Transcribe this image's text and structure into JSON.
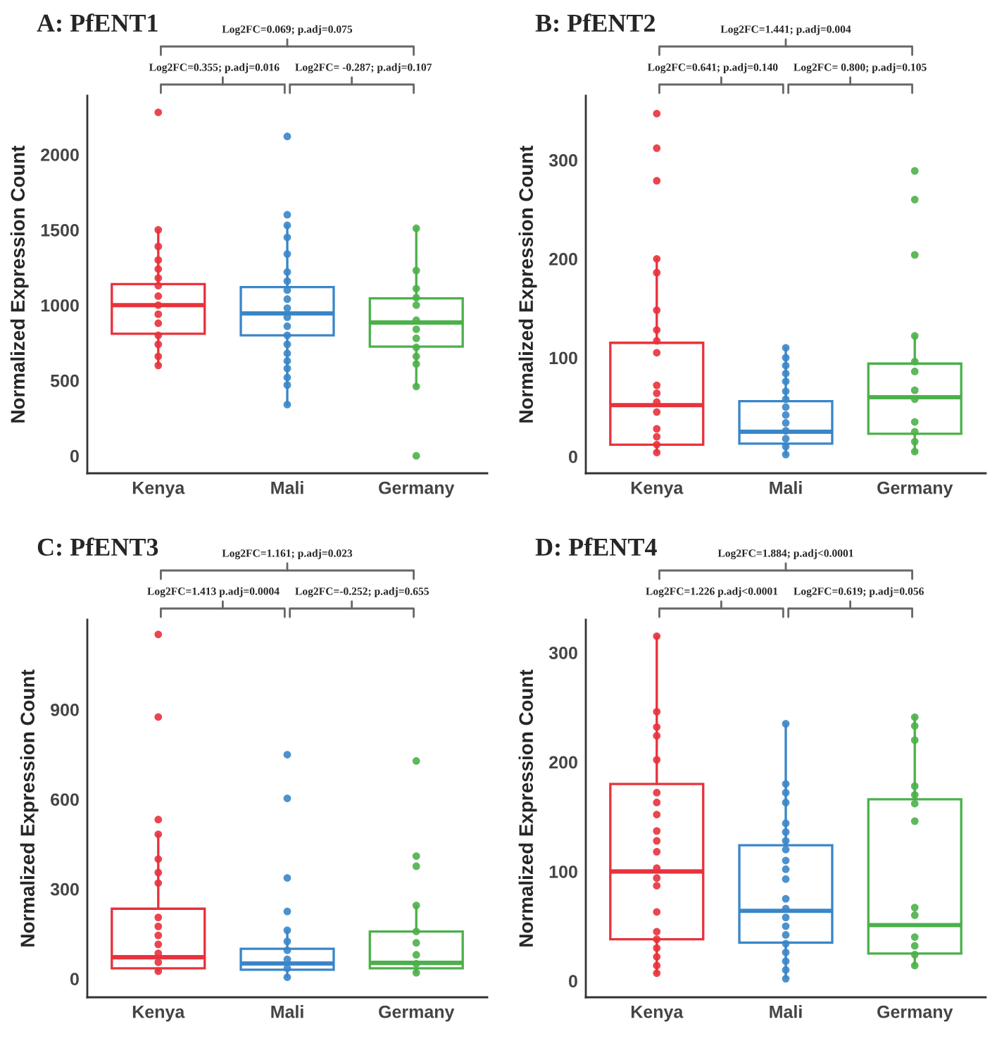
{
  "chart_data": [
    {
      "type": "box",
      "title": "A: PfENT1",
      "ylabel": "Normalized Expression Count",
      "categories": [
        "Kenya",
        "Mali",
        "Germany"
      ],
      "ylim": [
        -116,
        2390
      ],
      "yticks": [
        0,
        500,
        1000,
        1500,
        2000
      ],
      "annotations": [
        "Log2FC=0.069; p.adj=0.075",
        "Log2FC=0.355; p.adj=0.016",
        "Log2FC= -0.287; p.adj=0.107"
      ],
      "boxes": [
        {
          "low": 600,
          "q1": 810,
          "median": 1000,
          "q3": 1140,
          "high": 1500
        },
        {
          "low": 340,
          "q1": 800,
          "median": 945,
          "q3": 1120,
          "high": 1530
        },
        {
          "low": 460,
          "q1": 725,
          "median": 885,
          "q3": 1045,
          "high": 1510
        }
      ],
      "colors": [
        "#e8323c",
        "#3a86c8",
        "#4cb04a"
      ],
      "series": [
        {
          "type": "scatter",
          "color": "#e8323c",
          "x": [
            "Kenya",
            "Kenya",
            "Kenya",
            "Kenya",
            "Kenya",
            "Kenya",
            "Kenya",
            "Kenya",
            "Kenya",
            "Kenya",
            "Kenya",
            "Kenya",
            "Kenya",
            "Kenya",
            "Kenya"
          ],
          "values": [
            2280,
            1500,
            1390,
            1300,
            1240,
            1180,
            1130,
            1060,
            1000,
            940,
            880,
            800,
            740,
            660,
            600
          ]
        },
        {
          "type": "scatter",
          "color": "#3a86c8",
          "x": [
            "Mali",
            "Mali",
            "Mali",
            "Mali",
            "Mali",
            "Mali",
            "Mali",
            "Mali",
            "Mali",
            "Mali",
            "Mali",
            "Mali",
            "Mali",
            "Mali",
            "Mali",
            "Mali",
            "Mali",
            "Mali",
            "Mali",
            "Mali"
          ],
          "values": [
            2120,
            1600,
            1530,
            1450,
            1340,
            1220,
            1160,
            1100,
            1040,
            980,
            920,
            860,
            800,
            740,
            680,
            630,
            580,
            520,
            470,
            340
          ]
        },
        {
          "type": "scatter",
          "color": "#4cb04a",
          "x": [
            "Germany",
            "Germany",
            "Germany",
            "Germany",
            "Germany",
            "Germany",
            "Germany",
            "Germany",
            "Germany",
            "Germany",
            "Germany",
            "Germany",
            "Germany"
          ],
          "values": [
            1510,
            1230,
            1110,
            1050,
            1000,
            900,
            840,
            780,
            720,
            660,
            610,
            460,
            0
          ]
        }
      ]
    },
    {
      "type": "box",
      "title": "B: PfENT2",
      "ylabel": "Normalized Expression Count",
      "categories": [
        "Kenya",
        "Mali",
        "Germany"
      ],
      "ylim": [
        -17,
        365
      ],
      "yticks": [
        0,
        100,
        200,
        300
      ],
      "annotations": [
        "Log2FC=1.441; p.adj=0.004",
        "Log2FC=0.641; p.adj=0.140",
        "Log2FC= 0.800; p.adj=0.105"
      ],
      "boxes": [
        {
          "low": 4,
          "q1": 12,
          "median": 52,
          "q3": 115,
          "high": 200
        },
        {
          "low": 2,
          "q1": 13,
          "median": 25,
          "q3": 56,
          "high": 110
        },
        {
          "low": 5,
          "q1": 23,
          "median": 60,
          "q3": 94,
          "high": 122
        }
      ],
      "colors": [
        "#e8323c",
        "#3a86c8",
        "#4cb04a"
      ],
      "series": [
        {
          "type": "scatter",
          "color": "#e8323c",
          "x": [
            "Kenya",
            "Kenya",
            "Kenya",
            "Kenya",
            "Kenya",
            "Kenya",
            "Kenya",
            "Kenya",
            "Kenya",
            "Kenya",
            "Kenya",
            "Kenya",
            "Kenya",
            "Kenya",
            "Kenya",
            "Kenya",
            "Kenya"
          ],
          "values": [
            347,
            312,
            279,
            200,
            186,
            148,
            128,
            117,
            105,
            72,
            64,
            55,
            45,
            28,
            20,
            12,
            4
          ]
        },
        {
          "type": "scatter",
          "color": "#3a86c8",
          "x": [
            "Mali",
            "Mali",
            "Mali",
            "Mali",
            "Mali",
            "Mali",
            "Mali",
            "Mali",
            "Mali",
            "Mali",
            "Mali",
            "Mali",
            "Mali",
            "Mali"
          ],
          "values": [
            110,
            100,
            92,
            84,
            76,
            66,
            58,
            50,
            42,
            34,
            26,
            18,
            10,
            2
          ]
        },
        {
          "type": "scatter",
          "color": "#4cb04a",
          "x": [
            "Germany",
            "Germany",
            "Germany",
            "Germany",
            "Germany",
            "Germany",
            "Germany",
            "Germany",
            "Germany",
            "Germany",
            "Germany",
            "Germany"
          ],
          "values": [
            289,
            260,
            204,
            122,
            96,
            86,
            67,
            58,
            35,
            25,
            15,
            5
          ]
        }
      ]
    },
    {
      "type": "box",
      "title": "C: PfENT3",
      "ylabel": "Normalized Expression Count",
      "categories": [
        "Kenya",
        "Mali",
        "Germany"
      ],
      "ylim": [
        -62,
        1200
      ],
      "yticks": [
        0,
        300,
        600,
        900
      ],
      "annotations": [
        "Log2FC=1.161; p.adj=0.023",
        "Log2FC=1.413 p.adj=0.0004",
        "Log2FC=-0.252; p.adj=0.655"
      ],
      "boxes": [
        {
          "low": 25,
          "q1": 35,
          "median": 72,
          "q3": 234,
          "high": 483
        },
        {
          "low": 5,
          "q1": 30,
          "median": 51,
          "q3": 100,
          "high": 162
        },
        {
          "low": 20,
          "q1": 35,
          "median": 53,
          "q3": 158,
          "high": 245
        }
      ],
      "colors": [
        "#e8323c",
        "#3a86c8",
        "#4cb04a"
      ],
      "series": [
        {
          "type": "scatter",
          "color": "#e8323c",
          "x": [
            "Kenya",
            "Kenya",
            "Kenya",
            "Kenya",
            "Kenya",
            "Kenya",
            "Kenya",
            "Kenya",
            "Kenya",
            "Kenya",
            "Kenya",
            "Kenya",
            "Kenya",
            "Kenya"
          ],
          "values": [
            1151,
            875,
            532,
            483,
            400,
            355,
            320,
            205,
            175,
            145,
            115,
            85,
            55,
            25
          ]
        },
        {
          "type": "scatter",
          "color": "#3a86c8",
          "x": [
            "Mali",
            "Mali",
            "Mali",
            "Mali",
            "Mali",
            "Mali",
            "Mali",
            "Mali",
            "Mali",
            "Mali"
          ],
          "values": [
            749,
            603,
            337,
            225,
            162,
            125,
            95,
            65,
            35,
            5
          ]
        },
        {
          "type": "scatter",
          "color": "#4cb04a",
          "x": [
            "Germany",
            "Germany",
            "Germany",
            "Germany",
            "Germany",
            "Germany",
            "Germany",
            "Germany",
            "Germany"
          ],
          "values": [
            728,
            410,
            376,
            245,
            158,
            120,
            80,
            50,
            20
          ]
        }
      ]
    },
    {
      "type": "box",
      "title": "D: PfENT4",
      "ylabel": "Normalized Expression Count",
      "categories": [
        "Kenya",
        "Mali",
        "Germany"
      ],
      "ylim": [
        -15,
        330
      ],
      "yticks": [
        0,
        100,
        200,
        300
      ],
      "annotations": [
        "Log2FC=1.884; p.adj<0.0001",
        "Log2FC=1.226 p.adj<0.0001",
        "Log2FC=0.619; p.adj=0.056"
      ],
      "boxes": [
        {
          "low": 7,
          "q1": 38,
          "median": 100,
          "q3": 180,
          "high": 315
        },
        {
          "low": 2,
          "q1": 35,
          "median": 64,
          "q3": 124,
          "high": 235
        },
        {
          "low": 14,
          "q1": 25,
          "median": 51,
          "q3": 166,
          "high": 241
        }
      ],
      "colors": [
        "#e8323c",
        "#3a86c8",
        "#4cb04a"
      ],
      "series": [
        {
          "type": "scatter",
          "color": "#e8323c",
          "x": [
            "Kenya",
            "Kenya",
            "Kenya",
            "Kenya",
            "Kenya",
            "Kenya",
            "Kenya",
            "Kenya",
            "Kenya",
            "Kenya",
            "Kenya",
            "Kenya",
            "Kenya",
            "Kenya",
            "Kenya",
            "Kenya",
            "Kenya",
            "Kenya",
            "Kenya",
            "Kenya",
            "Kenya"
          ],
          "values": [
            315,
            246,
            232,
            224,
            202,
            172,
            163,
            152,
            137,
            128,
            118,
            103,
            94,
            87,
            63,
            45,
            38,
            30,
            22,
            14,
            7
          ]
        },
        {
          "type": "scatter",
          "color": "#3a86c8",
          "x": [
            "Mali",
            "Mali",
            "Mali",
            "Mali",
            "Mali",
            "Mali",
            "Mali",
            "Mali",
            "Mali",
            "Mali",
            "Mali",
            "Mali",
            "Mali",
            "Mali",
            "Mali",
            "Mali",
            "Mali",
            "Mali",
            "Mali",
            "Mali",
            "Mali"
          ],
          "values": [
            235,
            180,
            172,
            163,
            144,
            136,
            128,
            120,
            110,
            102,
            93,
            75,
            66,
            58,
            50,
            42,
            34,
            26,
            18,
            10,
            2
          ]
        },
        {
          "type": "scatter",
          "color": "#4cb04a",
          "x": [
            "Germany",
            "Germany",
            "Germany",
            "Germany",
            "Germany",
            "Germany",
            "Germany",
            "Germany",
            "Germany",
            "Germany",
            "Germany",
            "Germany",
            "Germany"
          ],
          "values": [
            241,
            233,
            220,
            178,
            170,
            162,
            146,
            67,
            60,
            40,
            32,
            24,
            14
          ]
        }
      ]
    }
  ]
}
